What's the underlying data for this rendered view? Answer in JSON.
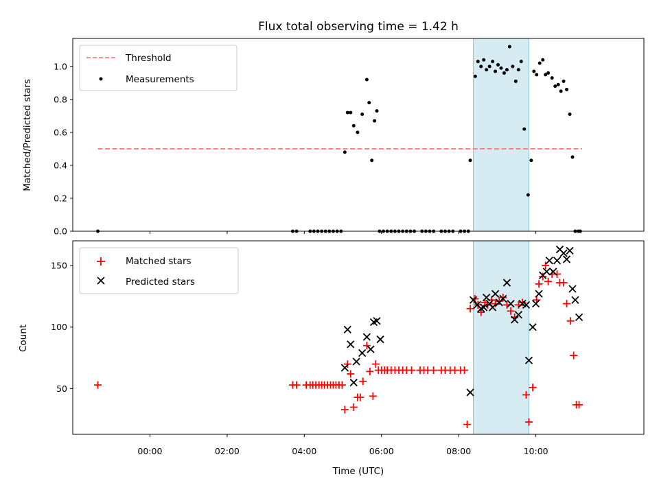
{
  "figure": {
    "title": "Flux total observing time = 1.42 h"
  },
  "chart_data": [
    {
      "type": "scatter",
      "ylabel": "Matched/Predicted stars",
      "xlabel": "",
      "xlim_hours": [
        -2.0,
        12.8
      ],
      "ylim": [
        0.0,
        1.17
      ],
      "yticks": [
        "0.0",
        "0.2",
        "0.4",
        "0.6",
        "0.8",
        "1.0"
      ],
      "highlight_span_hours": [
        8.38,
        9.82
      ],
      "legend": {
        "placement": "upper left",
        "threshold_label": "Threshold",
        "measurements_label": "Measurements"
      },
      "threshold": {
        "value": 0.5,
        "x_range_hours": [
          -1.35,
          11.2
        ],
        "color": "#ff7f7f"
      },
      "measurements": {
        "color": "#000000",
        "x_hours": [
          -1.35,
          3.7,
          3.8,
          4.15,
          4.25,
          4.35,
          4.45,
          4.55,
          4.65,
          4.75,
          4.85,
          4.95,
          5.05,
          5.12,
          5.2,
          5.28,
          5.38,
          5.5,
          5.62,
          5.68,
          5.75,
          5.82,
          5.88,
          5.95,
          6.05,
          6.15,
          6.25,
          6.35,
          6.45,
          6.55,
          6.65,
          6.75,
          6.85,
          7.05,
          7.15,
          7.25,
          7.35,
          7.55,
          7.65,
          7.75,
          7.85,
          8.05,
          8.15,
          8.25,
          8.3,
          8.43,
          8.5,
          8.58,
          8.65,
          8.72,
          8.8,
          8.88,
          8.95,
          9.02,
          9.1,
          9.18,
          9.25,
          9.32,
          9.4,
          9.48,
          9.55,
          9.62,
          9.7,
          9.8,
          9.88,
          9.95,
          10.02,
          10.1,
          10.18,
          10.25,
          10.32,
          10.42,
          10.5,
          10.58,
          10.65,
          10.72,
          10.8,
          10.88,
          10.95,
          11.02,
          11.1,
          11.15
        ],
        "y": [
          0.0,
          0.0,
          0.0,
          0.0,
          0.0,
          0.0,
          0.0,
          0.0,
          0.0,
          0.0,
          0.0,
          0.0,
          0.48,
          0.72,
          0.72,
          0.64,
          0.6,
          0.71,
          0.92,
          0.78,
          0.43,
          0.67,
          0.73,
          0.0,
          0.0,
          0.0,
          0.0,
          0.0,
          0.0,
          0.0,
          0.0,
          0.0,
          0.0,
          0.0,
          0.0,
          0.0,
          0.0,
          0.0,
          0.0,
          0.0,
          0.0,
          0.0,
          0.0,
          0.0,
          0.43,
          0.94,
          1.03,
          1.0,
          1.04,
          0.98,
          1.0,
          1.03,
          0.97,
          1.01,
          0.99,
          0.96,
          0.98,
          1.12,
          1.0,
          0.91,
          0.98,
          1.03,
          0.62,
          0.22,
          0.43,
          0.97,
          0.95,
          1.02,
          1.04,
          0.95,
          0.96,
          0.93,
          0.88,
          0.89,
          0.85,
          0.91,
          0.86,
          0.71,
          0.45,
          0.0,
          0.0,
          0.0
        ],
        "note_hidden": []
      }
    },
    {
      "type": "scatter",
      "ylabel": "Count",
      "xlabel": "Time (UTC)",
      "xlim_hours": [
        -2.0,
        12.8
      ],
      "xticks": [
        {
          "hours": 0,
          "label": "00:00"
        },
        {
          "hours": 2,
          "label": "02:00"
        },
        {
          "hours": 4,
          "label": "04:00"
        },
        {
          "hours": 6,
          "label": "06:00"
        },
        {
          "hours": 8,
          "label": "08:00"
        },
        {
          "hours": 10,
          "label": "10:00"
        }
      ],
      "ylim": [
        13,
        170
      ],
      "yticks": [
        "50",
        "100",
        "150"
      ],
      "ytick_values": [
        50,
        100,
        150
      ],
      "highlight_span_hours": [
        8.38,
        9.82
      ],
      "legend": {
        "placement": "upper left",
        "matched_label": "Matched stars",
        "predicted_label": "Predicted stars"
      },
      "matched": {
        "color": "#ff0000",
        "x_hours": [
          -1.35,
          3.7,
          3.8,
          4.05,
          4.15,
          4.22,
          4.3,
          4.38,
          4.45,
          4.52,
          4.6,
          4.68,
          4.75,
          4.82,
          4.9,
          4.98,
          5.05,
          5.12,
          5.2,
          5.28,
          5.38,
          5.45,
          5.52,
          5.62,
          5.7,
          5.78,
          5.85,
          5.92,
          6.0,
          6.08,
          6.15,
          6.25,
          6.35,
          6.45,
          6.55,
          6.65,
          6.78,
          7.0,
          7.1,
          7.2,
          7.35,
          7.55,
          7.65,
          7.78,
          7.9,
          8.05,
          8.15,
          8.22,
          8.3,
          8.42,
          8.5,
          8.58,
          8.68,
          8.75,
          8.85,
          8.95,
          9.05,
          9.15,
          9.25,
          9.35,
          9.45,
          9.55,
          9.65,
          9.75,
          9.82,
          9.92,
          10.02,
          10.08,
          10.18,
          10.25,
          10.32,
          10.42,
          10.55,
          10.62,
          10.72,
          10.8,
          10.9,
          10.98,
          11.05,
          11.12
        ],
        "y": [
          53,
          53,
          53,
          53,
          53,
          53,
          53,
          53,
          53,
          53,
          53,
          53,
          53,
          53,
          53,
          53,
          33,
          70,
          62,
          35,
          43,
          43,
          56,
          85,
          64,
          44,
          70,
          65,
          65,
          65,
          65,
          65,
          65,
          65,
          65,
          65,
          65,
          65,
          65,
          65,
          65,
          65,
          65,
          65,
          65,
          65,
          65,
          21,
          115,
          123,
          118,
          112,
          120,
          118,
          122,
          119,
          121,
          124,
          118,
          113,
          108,
          118,
          120,
          45,
          23,
          51,
          122,
          135,
          141,
          150,
          137,
          143,
          143,
          136,
          136,
          119,
          105,
          77,
          37,
          37
        ]
      },
      "predicted": {
        "color": "#000000",
        "x_hours": [
          5.05,
          5.12,
          5.2,
          5.28,
          5.35,
          5.5,
          5.62,
          5.72,
          5.8,
          5.88,
          5.97,
          8.3,
          8.38,
          8.48,
          8.58,
          8.65,
          8.72,
          8.8,
          8.88,
          8.95,
          9.05,
          9.15,
          9.25,
          9.35,
          9.45,
          9.55,
          9.65,
          9.75,
          9.82,
          9.92,
          10.0,
          10.08,
          10.18,
          10.28,
          10.35,
          10.45,
          10.55,
          10.62,
          10.72,
          10.8,
          10.88,
          10.95,
          11.02,
          11.12
        ],
        "y": [
          67,
          98,
          86,
          55,
          72,
          79,
          92,
          82,
          104,
          105,
          90,
          47,
          122,
          118,
          115,
          116,
          124,
          119,
          116,
          127,
          120,
          123,
          136,
          119,
          106,
          110,
          119,
          118,
          73,
          100,
          119,
          127,
          142,
          145,
          154,
          145,
          154,
          163,
          160,
          155,
          162,
          131,
          122,
          108
        ]
      }
    }
  ]
}
